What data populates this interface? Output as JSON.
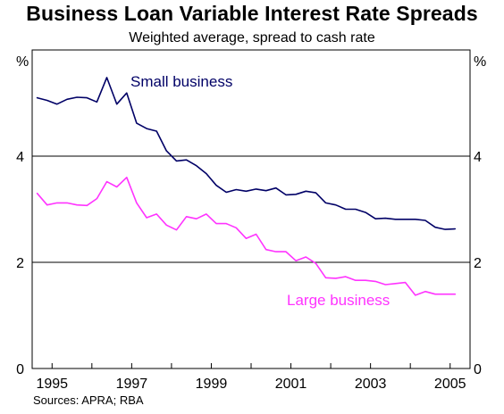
{
  "title": "Business Loan Variable Interest Rate Spreads",
  "subtitle": "Weighted average, spread to cash rate",
  "source": "Sources: APRA; RBA",
  "colors": {
    "small_business": "#000066",
    "large_business": "#ff33ff",
    "grid": "#000000"
  },
  "chart_data": {
    "type": "line",
    "title": "Business Loan Variable Interest Rate Spreads",
    "subtitle": "Weighted average, spread to cash rate",
    "ylabel_left": "%",
    "ylabel_right": "%",
    "ylim": [
      0,
      6
    ],
    "yticks": [
      0,
      2,
      4
    ],
    "xlim": [
      1994.5,
      2005.5
    ],
    "xticks": [
      1995,
      1997,
      1999,
      2001,
      2003,
      2005
    ],
    "xtick_labels": [
      "1995",
      "1997",
      "1999",
      "2001",
      "2003",
      "2005"
    ],
    "grid": "horizontal",
    "series": [
      {
        "name": "Small business",
        "x": [
          1994.625,
          1994.875,
          1995.125,
          1995.375,
          1995.625,
          1995.875,
          1996.125,
          1996.375,
          1996.625,
          1996.875,
          1997.125,
          1997.375,
          1997.625,
          1997.875,
          1998.125,
          1998.375,
          1998.625,
          1998.875,
          1999.125,
          1999.375,
          1999.625,
          1999.875,
          2000.125,
          2000.375,
          2000.625,
          2000.875,
          2001.125,
          2001.375,
          2001.625,
          2001.875,
          2002.125,
          2002.375,
          2002.625,
          2002.875,
          2003.125,
          2003.375,
          2003.625,
          2003.875,
          2004.125,
          2004.375,
          2004.625,
          2004.875,
          2005.125
        ],
        "values": [
          5.1,
          5.05,
          4.98,
          5.07,
          5.11,
          5.1,
          5.02,
          5.48,
          4.98,
          5.19,
          4.62,
          4.52,
          4.47,
          4.1,
          3.91,
          3.93,
          3.82,
          3.67,
          3.45,
          3.32,
          3.37,
          3.34,
          3.38,
          3.35,
          3.4,
          3.27,
          3.28,
          3.34,
          3.31,
          3.12,
          3.08,
          3.0,
          3.0,
          2.94,
          2.82,
          2.83,
          2.81,
          2.81,
          2.81,
          2.79,
          2.66,
          2.62,
          2.63
        ]
      },
      {
        "name": "Large business",
        "x": [
          1994.625,
          1994.875,
          1995.125,
          1995.375,
          1995.625,
          1995.875,
          1996.125,
          1996.375,
          1996.625,
          1996.875,
          1997.125,
          1997.375,
          1997.625,
          1997.875,
          1998.125,
          1998.375,
          1998.625,
          1998.875,
          1999.125,
          1999.375,
          1999.625,
          1999.875,
          2000.125,
          2000.375,
          2000.625,
          2000.875,
          2001.125,
          2001.375,
          2001.625,
          2001.875,
          2002.125,
          2002.375,
          2002.625,
          2002.875,
          2003.125,
          2003.375,
          2003.625,
          2003.875,
          2004.125,
          2004.375,
          2004.625,
          2004.875,
          2005.125
        ],
        "values": [
          3.3,
          3.08,
          3.12,
          3.12,
          3.08,
          3.07,
          3.2,
          3.52,
          3.42,
          3.6,
          3.12,
          2.84,
          2.91,
          2.7,
          2.61,
          2.86,
          2.82,
          2.91,
          2.73,
          2.73,
          2.65,
          2.45,
          2.53,
          2.24,
          2.2,
          2.2,
          2.03,
          2.1,
          1.98,
          1.71,
          1.7,
          1.73,
          1.66,
          1.66,
          1.64,
          1.58,
          1.6,
          1.62,
          1.38,
          1.45,
          1.4,
          1.4,
          1.4
        ]
      }
    ]
  }
}
